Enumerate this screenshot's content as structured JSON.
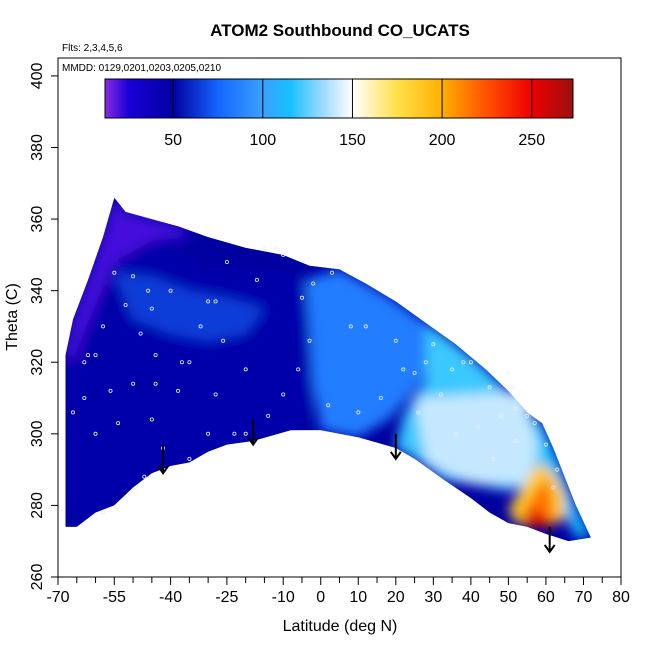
{
  "chart_data": {
    "type": "heatmap",
    "title": "ATOM2 Southbound CO_UCATS",
    "flights_note": "Flts: 2,3,4,5,6",
    "dates_note": "MMDD: 0129,0201,0203,0205,0210",
    "xlabel": "Latitude (deg N)",
    "ylabel": "Theta (C)",
    "xlim": [
      -70,
      80
    ],
    "ylim": [
      260,
      405
    ],
    "x_ticks": [
      -70,
      -55,
      -40,
      -25,
      -10,
      0,
      10,
      20,
      30,
      40,
      50,
      60,
      70,
      80
    ],
    "x_tick_labels": [
      "-70",
      "-55",
      "-40",
      "-25",
      "-10",
      "0",
      "10",
      "20",
      "30",
      "40",
      "50",
      "60",
      "70",
      "80"
    ],
    "x_minor_ticks": [
      -65,
      -60,
      -50,
      -45,
      -35,
      -30,
      -20,
      -15,
      -5,
      5,
      15,
      25,
      35,
      45,
      55,
      65,
      75
    ],
    "y_ticks": [
      260,
      280,
      300,
      320,
      340,
      360,
      380,
      400
    ],
    "y_tick_labels": [
      "260",
      "280",
      "300",
      "320",
      "340",
      "360",
      "380",
      "400"
    ],
    "colorbar": {
      "range": [
        12,
        273
      ],
      "ticks": [
        50,
        100,
        150,
        200,
        250
      ],
      "tick_labels": [
        "50",
        "100",
        "150",
        "200",
        "250"
      ],
      "stops": [
        {
          "v": 12,
          "c": "#8a2be2"
        },
        {
          "v": 25,
          "c": "#1a00d8"
        },
        {
          "v": 50,
          "c": "#0000a0"
        },
        {
          "v": 75,
          "c": "#1565ff"
        },
        {
          "v": 100,
          "c": "#3aa0ff"
        },
        {
          "v": 115,
          "c": "#17c0ff"
        },
        {
          "v": 135,
          "c": "#a8dcff"
        },
        {
          "v": 150,
          "c": "#ffffff"
        },
        {
          "v": 175,
          "c": "#ffe04a"
        },
        {
          "v": 200,
          "c": "#ffb000"
        },
        {
          "v": 225,
          "c": "#ff5000"
        },
        {
          "v": 250,
          "c": "#ee0000"
        },
        {
          "v": 273,
          "c": "#9a1010"
        }
      ]
    },
    "field_boundary": {
      "top": [
        [
          -68,
          322
        ],
        [
          -66,
          332
        ],
        [
          -62,
          343
        ],
        [
          -58,
          355
        ],
        [
          -55,
          366
        ],
        [
          -52,
          362
        ],
        [
          -45,
          360
        ],
        [
          -38,
          358
        ],
        [
          -30,
          355
        ],
        [
          -20,
          352
        ],
        [
          -10,
          350
        ],
        [
          -3,
          347
        ],
        [
          5,
          346
        ],
        [
          12,
          342
        ],
        [
          20,
          337
        ],
        [
          28,
          331
        ],
        [
          36,
          325
        ],
        [
          44,
          318
        ],
        [
          50,
          312
        ],
        [
          55,
          306
        ],
        [
          59,
          303
        ],
        [
          62,
          296
        ],
        [
          65,
          288
        ],
        [
          68,
          280
        ],
        [
          72,
          271
        ]
      ],
      "bottom": [
        [
          66,
          270
        ],
        [
          60,
          272
        ],
        [
          55,
          274
        ],
        [
          50,
          275
        ],
        [
          45,
          278
        ],
        [
          40,
          282
        ],
        [
          33,
          287
        ],
        [
          25,
          293
        ],
        [
          20,
          296
        ],
        [
          10,
          299
        ],
        [
          0,
          301
        ],
        [
          -8,
          301
        ],
        [
          -18,
          298
        ],
        [
          -25,
          297
        ],
        [
          -30,
          295
        ],
        [
          -35,
          292
        ],
        [
          -40,
          291
        ],
        [
          -45,
          289
        ],
        [
          -50,
          285
        ],
        [
          -55,
          280
        ],
        [
          -60,
          278
        ],
        [
          -65,
          274
        ],
        [
          -68,
          274
        ]
      ]
    },
    "field_regions": [
      {
        "name": "deep-blue",
        "value": 45,
        "points": [
          [
            -68,
            322
          ],
          [
            -62,
            343
          ],
          [
            -58,
            356
          ],
          [
            -50,
            358
          ],
          [
            -40,
            352
          ],
          [
            -30,
            346
          ],
          [
            -20,
            345
          ],
          [
            -10,
            345
          ],
          [
            -4,
            343
          ],
          [
            -2,
            330
          ],
          [
            0,
            315
          ],
          [
            -5,
            301
          ],
          [
            -18,
            298
          ],
          [
            -30,
            295
          ],
          [
            -40,
            291
          ],
          [
            -50,
            285
          ],
          [
            -60,
            278
          ],
          [
            -68,
            274
          ]
        ]
      },
      {
        "name": "purple-top",
        "value": 20,
        "points": [
          [
            -68,
            322
          ],
          [
            -66,
            332
          ],
          [
            -62,
            343
          ],
          [
            -58,
            355
          ],
          [
            -55,
            366
          ],
          [
            -52,
            362
          ],
          [
            -45,
            360
          ],
          [
            -38,
            358
          ],
          [
            -34,
            355
          ],
          [
            -45,
            354
          ],
          [
            -55,
            348
          ],
          [
            -60,
            336
          ],
          [
            -64,
            326
          ],
          [
            -66,
            320
          ]
        ]
      },
      {
        "name": "mid-blue-band",
        "value": 65,
        "points": [
          [
            -55,
            345
          ],
          [
            -45,
            344
          ],
          [
            -35,
            340
          ],
          [
            -25,
            338
          ],
          [
            -15,
            335
          ],
          [
            -20,
            328
          ],
          [
            -30,
            326
          ],
          [
            -40,
            328
          ],
          [
            -50,
            332
          ]
        ]
      },
      {
        "name": "blue-east",
        "value": 85,
        "points": [
          [
            -4,
            343
          ],
          [
            5,
            346
          ],
          [
            12,
            342
          ],
          [
            20,
            337
          ],
          [
            28,
            331
          ],
          [
            32,
            322
          ],
          [
            25,
            312
          ],
          [
            18,
            304
          ],
          [
            10,
            299
          ],
          [
            0,
            301
          ],
          [
            -2,
            315
          ],
          [
            -3,
            330
          ]
        ]
      },
      {
        "name": "light-blue-east",
        "value": 120,
        "points": [
          [
            28,
            331
          ],
          [
            36,
            325
          ],
          [
            44,
            318
          ],
          [
            50,
            312
          ],
          [
            55,
            306
          ],
          [
            59,
            303
          ],
          [
            62,
            296
          ],
          [
            65,
            288
          ],
          [
            60,
            286
          ],
          [
            50,
            284
          ],
          [
            40,
            286
          ],
          [
            33,
            287
          ],
          [
            25,
            293
          ],
          [
            20,
            296
          ],
          [
            22,
            305
          ],
          [
            28,
            315
          ]
        ]
      },
      {
        "name": "pale-blue-box",
        "value": 140,
        "points": [
          [
            25,
            310
          ],
          [
            55,
            312
          ],
          [
            58,
            296
          ],
          [
            55,
            286
          ],
          [
            40,
            286
          ],
          [
            28,
            292
          ]
        ]
      },
      {
        "name": "cyan-edge",
        "value": 115,
        "points": [
          [
            55,
            306
          ],
          [
            59,
            303
          ],
          [
            62,
            296
          ],
          [
            65,
            288
          ],
          [
            68,
            280
          ],
          [
            72,
            271
          ],
          [
            68,
            271
          ],
          [
            64,
            280
          ],
          [
            60,
            290
          ],
          [
            57,
            300
          ]
        ]
      },
      {
        "name": "yellow-core",
        "value": 185,
        "points": [
          [
            50,
            279
          ],
          [
            55,
            287
          ],
          [
            58,
            292
          ],
          [
            62,
            289
          ],
          [
            65,
            283
          ],
          [
            65,
            276
          ],
          [
            58,
            275
          ],
          [
            52,
            275
          ]
        ]
      },
      {
        "name": "orange-core",
        "value": 215,
        "points": [
          [
            53,
            277
          ],
          [
            57,
            284
          ],
          [
            60,
            288
          ],
          [
            62,
            283
          ],
          [
            62,
            277
          ],
          [
            57,
            276
          ]
        ]
      },
      {
        "name": "red-core",
        "value": 255,
        "points": [
          [
            54,
            274
          ],
          [
            60,
            274
          ],
          [
            64,
            275
          ],
          [
            60,
            277
          ],
          [
            57,
            279
          ],
          [
            55,
            278
          ]
        ]
      }
    ],
    "observations": [
      [
        -66,
        306
      ],
      [
        -63,
        310
      ],
      [
        -63,
        320
      ],
      [
        -62,
        322
      ],
      [
        -60,
        322
      ],
      [
        -58,
        330
      ],
      [
        -55,
        345
      ],
      [
        -52,
        336
      ],
      [
        -50,
        344
      ],
      [
        -48,
        328
      ],
      [
        -46,
        340
      ],
      [
        -45,
        335
      ],
      [
        -44,
        322
      ],
      [
        -40,
        340
      ],
      [
        -37,
        320
      ],
      [
        -35,
        320
      ],
      [
        -30,
        337
      ],
      [
        -28,
        337
      ],
      [
        -28,
        311
      ],
      [
        -25,
        348
      ],
      [
        -23,
        300
      ],
      [
        -17,
        343
      ],
      [
        -15,
        352
      ],
      [
        -12,
        352
      ],
      [
        -10,
        350
      ],
      [
        -5,
        338
      ],
      [
        -3,
        326
      ],
      [
        -2,
        342
      ],
      [
        3,
        345
      ],
      [
        5,
        347
      ],
      [
        8,
        330
      ],
      [
        12,
        330
      ],
      [
        16,
        310
      ],
      [
        19,
        340
      ],
      [
        20,
        326
      ],
      [
        22,
        318
      ],
      [
        25,
        317
      ],
      [
        28,
        320
      ],
      [
        30,
        325
      ],
      [
        32,
        311
      ],
      [
        35,
        318
      ],
      [
        38,
        320
      ],
      [
        40,
        320
      ],
      [
        42,
        302
      ],
      [
        45,
        313
      ],
      [
        48,
        305
      ],
      [
        50,
        317
      ],
      [
        51,
        313
      ],
      [
        52,
        307
      ],
      [
        55,
        305
      ],
      [
        57,
        303
      ],
      [
        60,
        297
      ],
      [
        62,
        285
      ],
      [
        63,
        290
      ],
      [
        -58,
        278
      ],
      [
        -52,
        282
      ],
      [
        -47,
        288
      ],
      [
        -45,
        304
      ],
      [
        -42,
        296
      ],
      [
        -35,
        293
      ],
      [
        -30,
        300
      ],
      [
        -20,
        300
      ],
      [
        -10,
        311
      ],
      [
        -60,
        300
      ],
      [
        -56,
        312
      ],
      [
        -54,
        303
      ],
      [
        -50,
        314
      ],
      [
        -44,
        314
      ],
      [
        -38,
        312
      ],
      [
        -32,
        330
      ],
      [
        -26,
        326
      ],
      [
        -20,
        318
      ],
      [
        -14,
        305
      ],
      [
        -6,
        318
      ],
      [
        2,
        308
      ],
      [
        10,
        306
      ],
      [
        26,
        306
      ],
      [
        36,
        300
      ],
      [
        46,
        293
      ],
      [
        52,
        298
      ]
    ],
    "arrows": [
      {
        "x": -42,
        "y_top": 297,
        "y_bottom": 289
      },
      {
        "x": -18,
        "y_top": 304,
        "y_bottom": 297
      },
      {
        "x": 20,
        "y_top": 300,
        "y_bottom": 293
      },
      {
        "x": 61,
        "y_top": 274,
        "y_bottom": 267
      }
    ]
  }
}
